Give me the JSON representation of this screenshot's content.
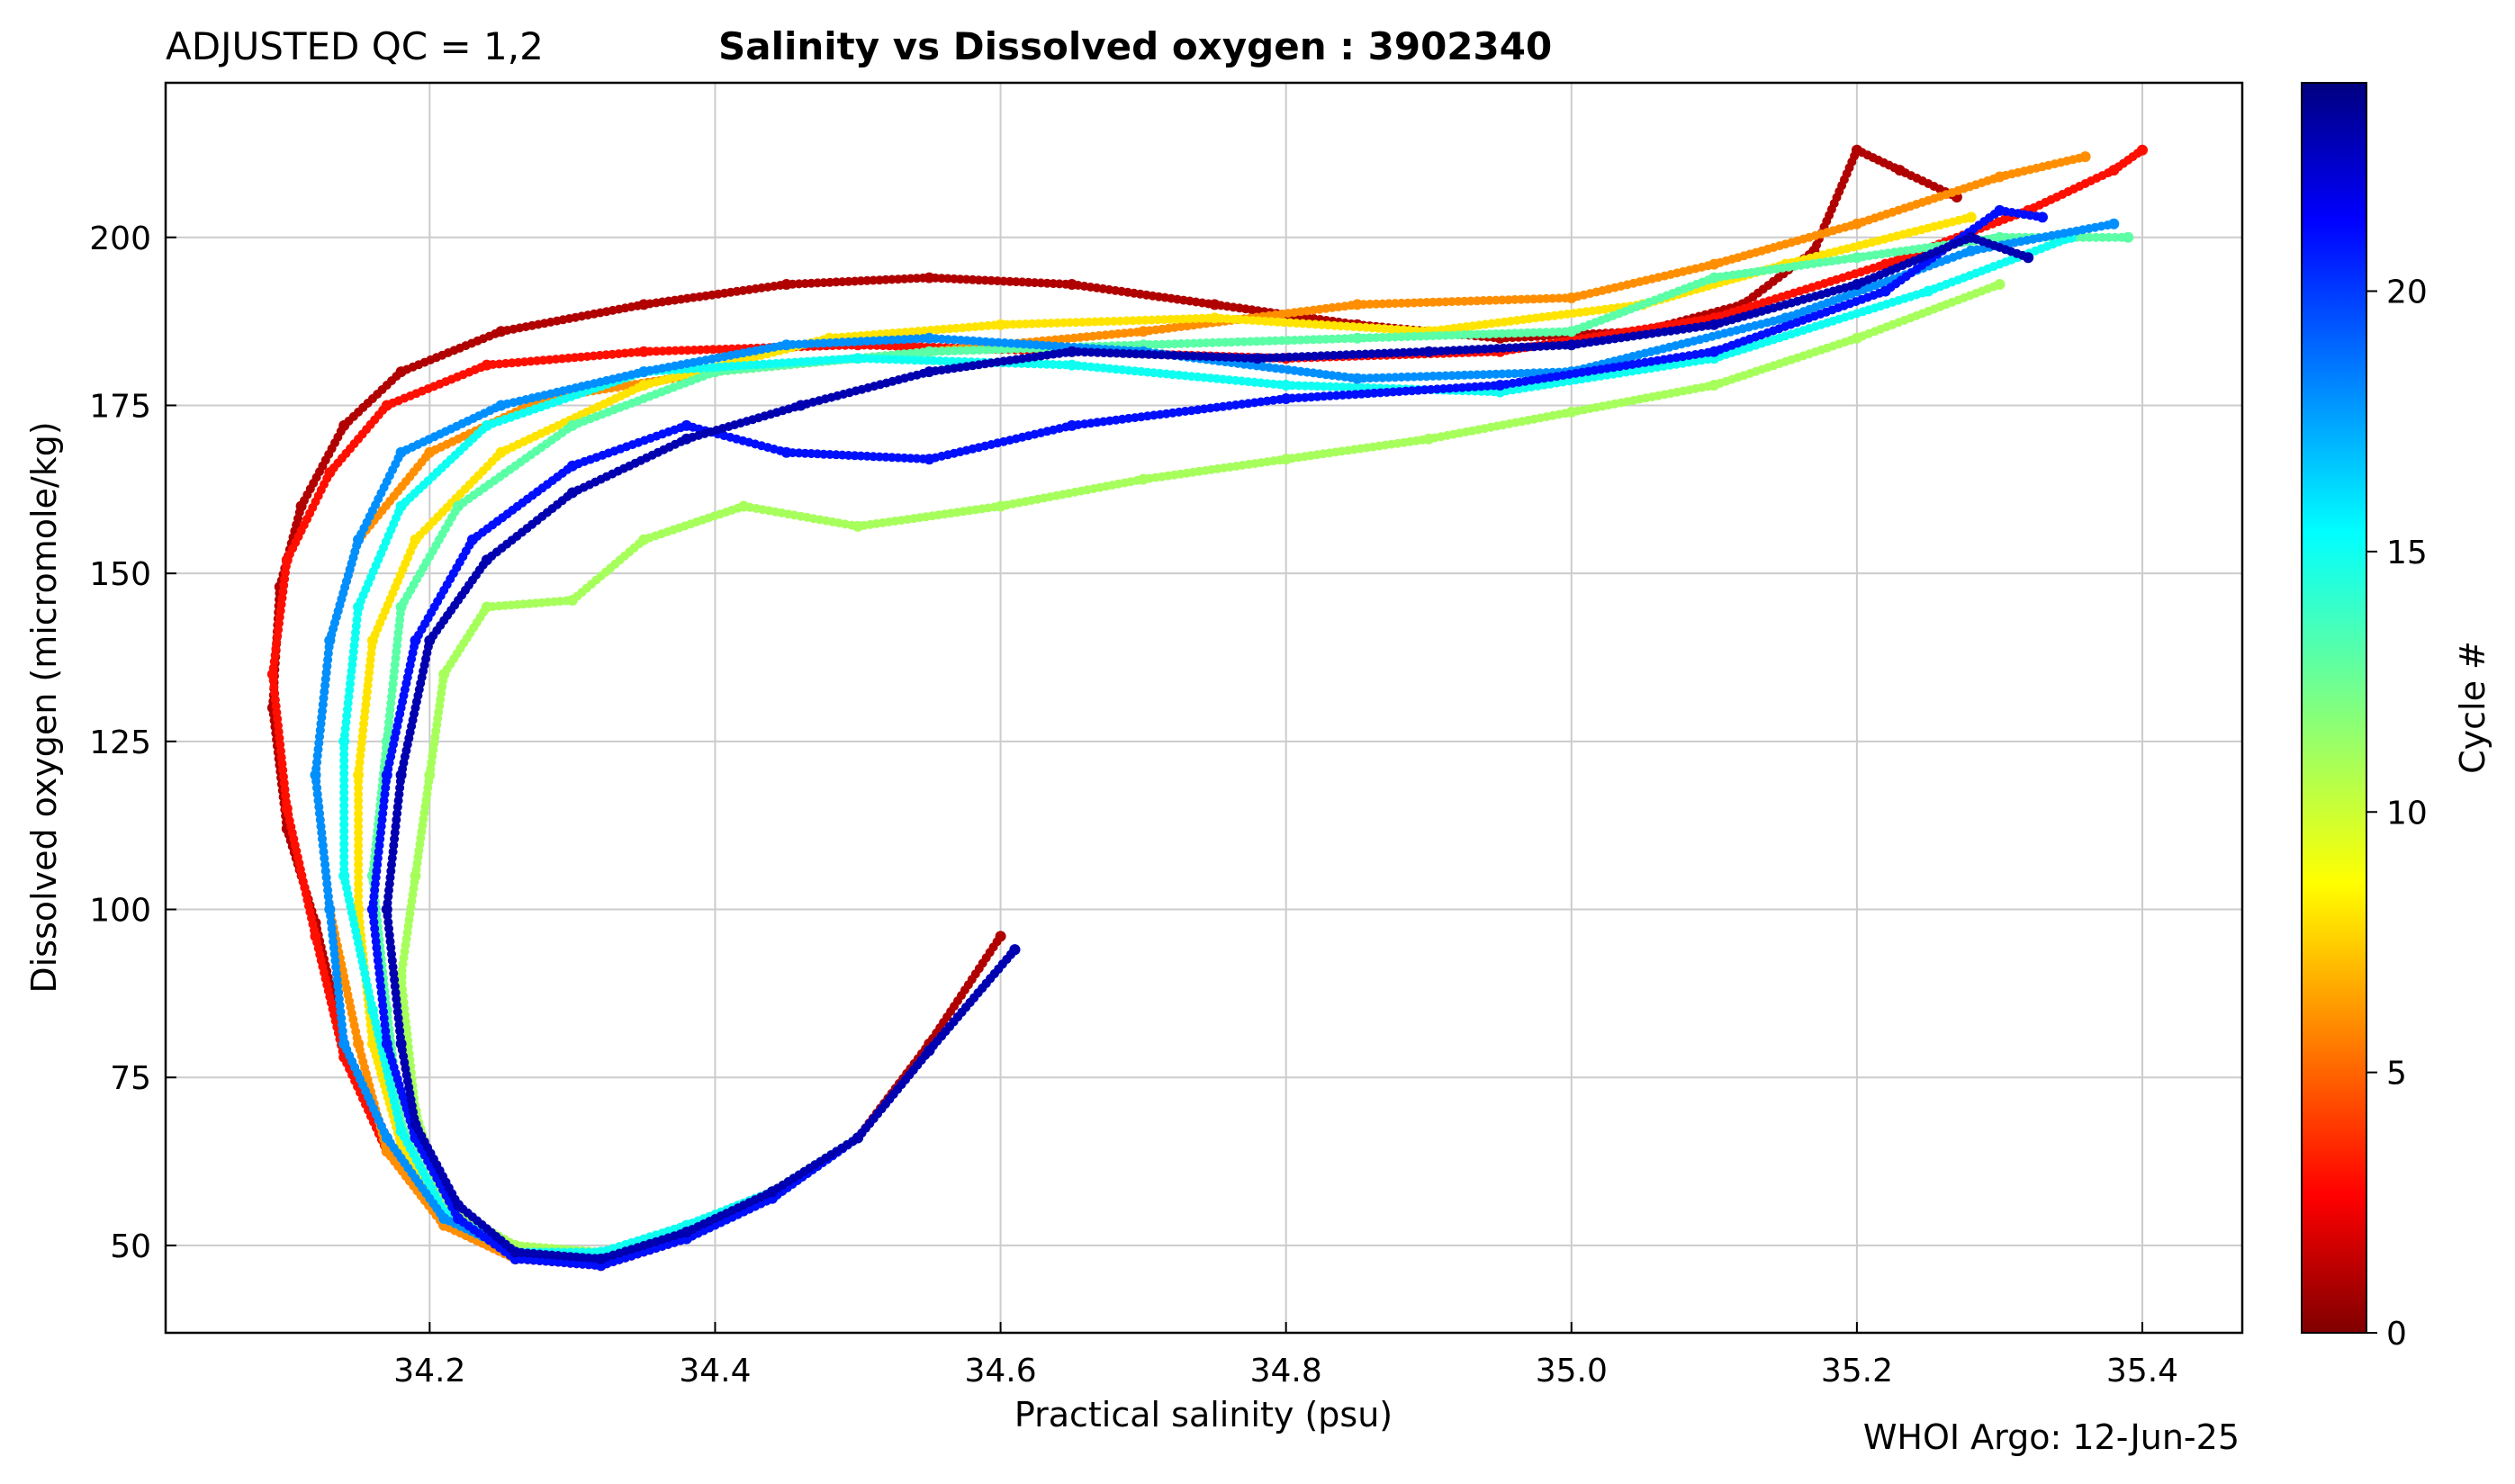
{
  "chart_data": {
    "type": "scatter",
    "title_left": "ADJUSTED QC = 1,2",
    "title": "Salinity vs Dissolved oxygen : 3902340",
    "xlabel": "Practical salinity  (psu)",
    "ylabel": "Dissolved oxygen  (micromole/kg)",
    "xlim": [
      34.015,
      35.47
    ],
    "ylim": [
      37,
      223
    ],
    "x_ticks": [
      34.2,
      34.4,
      34.6,
      34.8,
      35.0,
      35.2,
      35.4
    ],
    "x_tick_labels": [
      "34.2",
      "34.4",
      "34.6",
      "34.8",
      "35.0",
      "35.2",
      "35.4"
    ],
    "y_ticks": [
      50,
      75,
      100,
      125,
      150,
      175,
      200
    ],
    "y_tick_labels": [
      "50",
      "75",
      "100",
      "125",
      "150",
      "175",
      "200"
    ],
    "grid": true,
    "colorbar": {
      "label": "Cycle #",
      "min": 0,
      "max": 24,
      "ticks": [
        0,
        5,
        10,
        15,
        20
      ],
      "tick_labels": [
        "0",
        "5",
        "10",
        "15",
        "20"
      ],
      "colormap": "jet (reversed: dark red = 0, dark blue = max)"
    },
    "footer": "WHOI Argo: 12-Jun-25",
    "series": [
      {
        "cycle": 1,
        "points": [
          [
            34.6,
            96
          ],
          [
            34.55,
            80
          ],
          [
            34.5,
            66
          ],
          [
            34.44,
            58
          ],
          [
            34.38,
            52
          ],
          [
            34.32,
            48
          ],
          [
            34.26,
            49
          ],
          [
            34.21,
            54
          ],
          [
            34.17,
            66
          ],
          [
            34.14,
            80
          ],
          [
            34.12,
            98
          ],
          [
            34.1,
            112
          ],
          [
            34.09,
            130
          ],
          [
            34.095,
            148
          ],
          [
            34.11,
            160
          ],
          [
            34.14,
            172
          ],
          [
            34.18,
            180
          ],
          [
            34.25,
            186
          ],
          [
            34.35,
            190
          ],
          [
            34.45,
            193
          ],
          [
            34.55,
            194
          ],
          [
            34.65,
            193
          ],
          [
            34.75,
            190
          ],
          [
            34.85,
            187
          ],
          [
            34.95,
            185
          ],
          [
            35.05,
            186
          ],
          [
            35.12,
            190
          ],
          [
            35.17,
            198
          ],
          [
            35.2,
            213
          ],
          [
            35.23,
            210
          ],
          [
            35.27,
            206
          ]
        ]
      },
      {
        "cycle": 3,
        "points": [
          [
            34.55,
            79
          ],
          [
            34.5,
            66
          ],
          [
            34.44,
            57
          ],
          [
            34.38,
            51
          ],
          [
            34.32,
            47
          ],
          [
            34.26,
            48
          ],
          [
            34.21,
            53
          ],
          [
            34.17,
            64
          ],
          [
            34.14,
            78
          ],
          [
            34.12,
            96
          ],
          [
            34.1,
            115
          ],
          [
            34.09,
            135
          ],
          [
            34.1,
            152
          ],
          [
            34.13,
            165
          ],
          [
            34.17,
            175
          ],
          [
            34.24,
            181
          ],
          [
            34.35,
            183
          ],
          [
            34.5,
            184
          ],
          [
            34.65,
            183
          ],
          [
            34.8,
            182
          ],
          [
            34.95,
            183
          ],
          [
            35.1,
            188
          ],
          [
            35.22,
            196
          ],
          [
            35.32,
            204
          ],
          [
            35.38,
            210
          ],
          [
            35.4,
            213
          ]
        ]
      },
      {
        "cycle": 6,
        "points": [
          [
            34.55,
            79
          ],
          [
            34.5,
            66
          ],
          [
            34.44,
            57
          ],
          [
            34.38,
            51
          ],
          [
            34.32,
            47
          ],
          [
            34.26,
            48
          ],
          [
            34.21,
            53
          ],
          [
            34.17,
            64
          ],
          [
            34.15,
            80
          ],
          [
            34.13,
            100
          ],
          [
            34.12,
            120
          ],
          [
            34.13,
            140
          ],
          [
            34.15,
            155
          ],
          [
            34.2,
            168
          ],
          [
            34.28,
            176
          ],
          [
            34.4,
            180
          ],
          [
            34.55,
            183
          ],
          [
            34.7,
            186
          ],
          [
            34.85,
            190
          ],
          [
            35.0,
            191
          ],
          [
            35.1,
            196
          ],
          [
            35.2,
            202
          ],
          [
            35.3,
            209
          ],
          [
            35.36,
            212
          ]
        ]
      },
      {
        "cycle": 8,
        "points": [
          [
            34.5,
            66
          ],
          [
            34.44,
            57
          ],
          [
            34.38,
            51
          ],
          [
            34.32,
            48
          ],
          [
            34.26,
            49
          ],
          [
            34.21,
            54
          ],
          [
            34.18,
            65
          ],
          [
            34.16,
            80
          ],
          [
            34.15,
            100
          ],
          [
            34.15,
            120
          ],
          [
            34.16,
            140
          ],
          [
            34.19,
            155
          ],
          [
            34.25,
            168
          ],
          [
            34.35,
            178
          ],
          [
            34.48,
            185
          ],
          [
            34.6,
            187
          ],
          [
            34.75,
            188
          ],
          [
            34.9,
            186
          ],
          [
            35.05,
            190
          ],
          [
            35.15,
            196
          ],
          [
            35.28,
            203
          ]
        ]
      },
      {
        "cycle": 11,
        "points": [
          [
            34.5,
            66
          ],
          [
            34.44,
            58
          ],
          [
            34.38,
            52
          ],
          [
            34.32,
            49
          ],
          [
            34.26,
            50
          ],
          [
            34.21,
            56
          ],
          [
            34.19,
            70
          ],
          [
            34.18,
            90
          ],
          [
            34.19,
            105
          ],
          [
            34.2,
            120
          ],
          [
            34.21,
            135
          ],
          [
            34.24,
            145
          ],
          [
            34.3,
            146
          ],
          [
            34.35,
            155
          ],
          [
            34.42,
            160
          ],
          [
            34.5,
            157
          ],
          [
            34.6,
            160
          ],
          [
            34.7,
            164
          ],
          [
            34.8,
            167
          ],
          [
            34.9,
            170
          ],
          [
            35.0,
            174
          ],
          [
            35.1,
            178
          ],
          [
            35.2,
            185
          ],
          [
            35.3,
            193
          ]
        ]
      },
      {
        "cycle": 13,
        "points": [
          [
            34.5,
            66
          ],
          [
            34.44,
            57
          ],
          [
            34.38,
            51
          ],
          [
            34.32,
            48
          ],
          [
            34.26,
            49
          ],
          [
            34.21,
            55
          ],
          [
            34.18,
            68
          ],
          [
            34.17,
            85
          ],
          [
            34.16,
            105
          ],
          [
            34.17,
            125
          ],
          [
            34.18,
            145
          ],
          [
            34.22,
            160
          ],
          [
            34.3,
            172
          ],
          [
            34.4,
            180
          ],
          [
            34.55,
            183
          ],
          [
            34.7,
            184
          ],
          [
            34.85,
            185
          ],
          [
            35.0,
            186
          ],
          [
            35.1,
            194
          ],
          [
            35.2,
            197
          ],
          [
            35.3,
            200
          ],
          [
            35.39,
            200
          ]
        ]
      },
      {
        "cycle": 15,
        "points": [
          [
            34.5,
            66
          ],
          [
            34.44,
            58
          ],
          [
            34.38,
            53
          ],
          [
            34.32,
            49
          ],
          [
            34.26,
            49
          ],
          [
            34.21,
            55
          ],
          [
            34.18,
            67
          ],
          [
            34.16,
            85
          ],
          [
            34.14,
            105
          ],
          [
            34.14,
            125
          ],
          [
            34.15,
            145
          ],
          [
            34.18,
            160
          ],
          [
            34.24,
            172
          ],
          [
            34.35,
            180
          ],
          [
            34.5,
            182
          ],
          [
            34.65,
            181
          ],
          [
            34.8,
            178
          ],
          [
            34.95,
            177
          ],
          [
            35.1,
            182
          ],
          [
            35.25,
            192
          ],
          [
            35.35,
            200
          ]
        ]
      },
      {
        "cycle": 18,
        "points": [
          [
            34.61,
            94
          ],
          [
            34.55,
            79
          ],
          [
            34.5,
            66
          ],
          [
            34.44,
            57
          ],
          [
            34.38,
            51
          ],
          [
            34.32,
            48
          ],
          [
            34.26,
            49
          ],
          [
            34.21,
            54
          ],
          [
            34.17,
            66
          ],
          [
            34.14,
            80
          ],
          [
            34.13,
            100
          ],
          [
            34.12,
            120
          ],
          [
            34.13,
            140
          ],
          [
            34.15,
            155
          ],
          [
            34.18,
            168
          ],
          [
            34.25,
            175
          ],
          [
            34.35,
            180
          ],
          [
            34.45,
            184
          ],
          [
            34.55,
            185
          ],
          [
            34.7,
            183
          ],
          [
            34.85,
            179
          ],
          [
            35.0,
            180
          ],
          [
            35.15,
            188
          ],
          [
            35.28,
            198
          ],
          [
            35.38,
            202
          ]
        ]
      },
      {
        "cycle": 21,
        "points": [
          [
            34.61,
            94
          ],
          [
            34.55,
            79
          ],
          [
            34.5,
            66
          ],
          [
            34.44,
            57
          ],
          [
            34.38,
            51
          ],
          [
            34.32,
            47
          ],
          [
            34.26,
            48
          ],
          [
            34.22,
            54
          ],
          [
            34.19,
            66
          ],
          [
            34.17,
            80
          ],
          [
            34.16,
            100
          ],
          [
            34.17,
            120
          ],
          [
            34.19,
            140
          ],
          [
            34.23,
            155
          ],
          [
            34.3,
            166
          ],
          [
            34.38,
            172
          ],
          [
            34.45,
            168
          ],
          [
            34.55,
            167
          ],
          [
            34.65,
            172
          ],
          [
            34.8,
            176
          ],
          [
            34.95,
            178
          ],
          [
            35.1,
            183
          ],
          [
            35.22,
            192
          ],
          [
            35.3,
            204
          ],
          [
            35.33,
            203
          ]
        ]
      },
      {
        "cycle": 23,
        "points": [
          [
            34.61,
            94
          ],
          [
            34.55,
            79
          ],
          [
            34.5,
            66
          ],
          [
            34.44,
            58
          ],
          [
            34.38,
            52
          ],
          [
            34.32,
            48
          ],
          [
            34.26,
            49
          ],
          [
            34.22,
            56
          ],
          [
            34.19,
            68
          ],
          [
            34.18,
            80
          ],
          [
            34.17,
            100
          ],
          [
            34.18,
            120
          ],
          [
            34.2,
            140
          ],
          [
            34.24,
            152
          ],
          [
            34.3,
            162
          ],
          [
            34.38,
            170
          ],
          [
            34.46,
            175
          ],
          [
            34.55,
            180
          ],
          [
            34.65,
            183
          ],
          [
            34.78,
            182
          ],
          [
            34.9,
            183
          ],
          [
            35.0,
            184
          ],
          [
            35.1,
            187
          ],
          [
            35.2,
            193
          ],
          [
            35.28,
            200
          ],
          [
            35.32,
            197
          ]
        ]
      }
    ]
  }
}
